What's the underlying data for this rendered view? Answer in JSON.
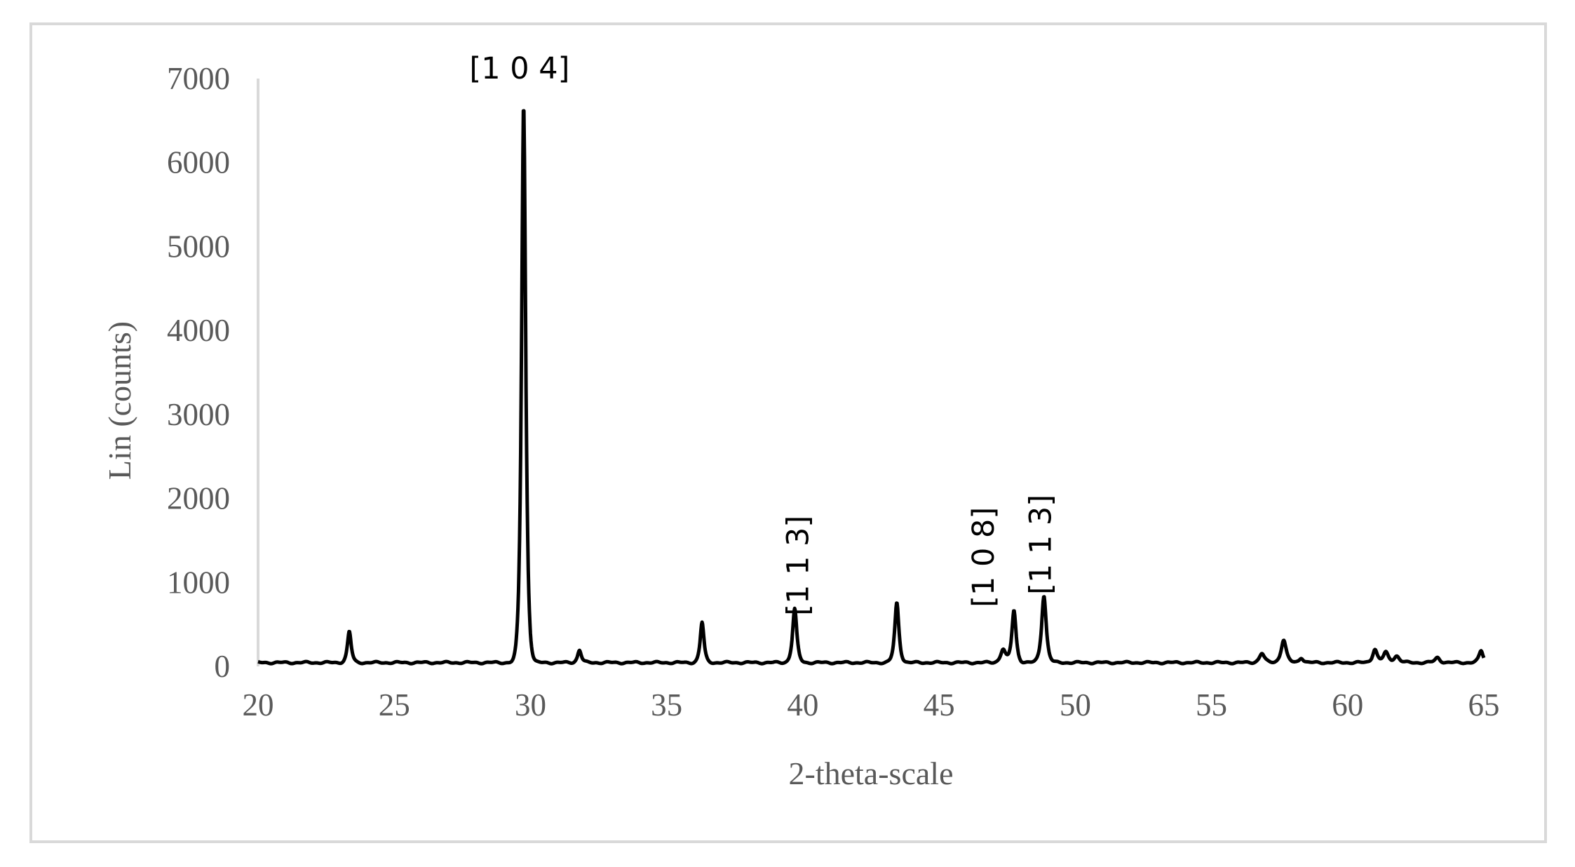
{
  "chart_data": {
    "type": "line",
    "title": "",
    "xlabel": "2-theta-scale",
    "ylabel": "Lin (counts)",
    "xlim": [
      20,
      65
    ],
    "ylim": [
      0,
      7000
    ],
    "xticks": [
      20,
      25,
      30,
      35,
      40,
      45,
      50,
      55,
      60,
      65
    ],
    "yticks": [
      0,
      1000,
      2000,
      3000,
      4000,
      5000,
      6000,
      7000
    ],
    "grid": false,
    "legend": "none",
    "line_color": "#000000",
    "axis_color": "#d9d9d9",
    "text_color": "#595959",
    "baseline": 45,
    "peaks": [
      {
        "x": 23.35,
        "y": 370,
        "width": 0.09
      },
      {
        "x": 29.75,
        "y": 6650,
        "width": 0.1
      },
      {
        "x": 31.8,
        "y": 150,
        "width": 0.09
      },
      {
        "x": 36.3,
        "y": 480,
        "width": 0.09
      },
      {
        "x": 39.7,
        "y": 640,
        "width": 0.1
      },
      {
        "x": 43.45,
        "y": 710,
        "width": 0.1
      },
      {
        "x": 47.35,
        "y": 160,
        "width": 0.12
      },
      {
        "x": 47.75,
        "y": 620,
        "width": 0.1
      },
      {
        "x": 48.85,
        "y": 800,
        "width": 0.11
      },
      {
        "x": 56.85,
        "y": 110,
        "width": 0.12
      },
      {
        "x": 57.65,
        "y": 270,
        "width": 0.12
      },
      {
        "x": 58.3,
        "y": 60,
        "width": 0.1
      },
      {
        "x": 61.0,
        "y": 160,
        "width": 0.11
      },
      {
        "x": 61.4,
        "y": 120,
        "width": 0.12
      },
      {
        "x": 61.8,
        "y": 80,
        "width": 0.13
      },
      {
        "x": 63.3,
        "y": 60,
        "width": 0.12
      },
      {
        "x": 64.9,
        "y": 140,
        "width": 0.1
      }
    ],
    "annotations": [
      {
        "text": "[1 0 4]",
        "x": 29.6,
        "y": 7000,
        "rotated": false
      },
      {
        "text": "[1 1 3]",
        "x": 40.2,
        "y": 1200,
        "rotated": true
      },
      {
        "text": "[1 0 8]",
        "x": 47.0,
        "y": 1300,
        "rotated": true
      },
      {
        "text": "[1 1 3]",
        "x": 49.1,
        "y": 1450,
        "rotated": true
      }
    ]
  }
}
